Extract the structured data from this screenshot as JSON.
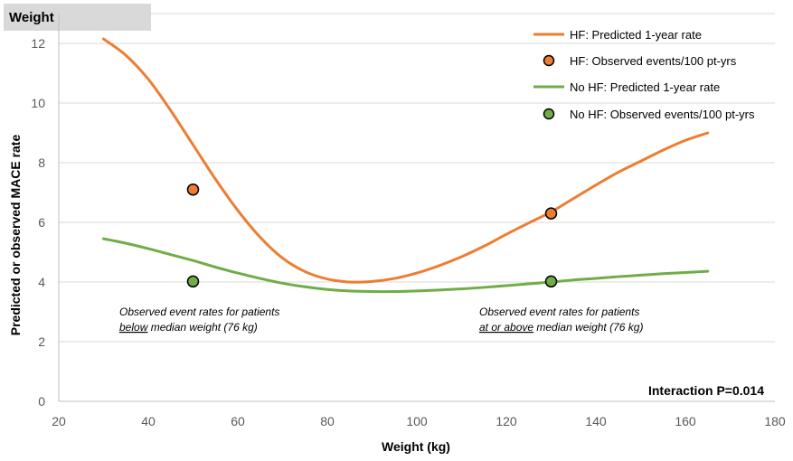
{
  "chart_data": {
    "type": "line",
    "title": "Weight",
    "xlabel": "Weight (kg)",
    "ylabel": "Predicted or observed MACE rate",
    "xlim": [
      20,
      180
    ],
    "ylim": [
      0,
      13
    ],
    "xticks": [
      20,
      40,
      60,
      80,
      100,
      120,
      140,
      160,
      180
    ],
    "yticks": [
      0,
      2,
      4,
      6,
      8,
      10,
      12
    ],
    "grid": "horizontal",
    "legend_position": "top-right",
    "series": [
      {
        "name": "HF: Predicted 1-year rate",
        "kind": "line",
        "color": "#ED7D31",
        "x": [
          30,
          35,
          40,
          45,
          50,
          55,
          60,
          65,
          70,
          75,
          80,
          85,
          90,
          95,
          100,
          105,
          110,
          115,
          120,
          125,
          130,
          135,
          140,
          145,
          150,
          155,
          160,
          165
        ],
        "y": [
          12.15,
          11.6,
          10.8,
          9.75,
          8.6,
          7.45,
          6.4,
          5.5,
          4.8,
          4.35,
          4.1,
          4.0,
          4.02,
          4.12,
          4.3,
          4.55,
          4.85,
          5.2,
          5.6,
          5.98,
          6.35,
          6.8,
          7.25,
          7.68,
          8.05,
          8.42,
          8.75,
          9.0
        ]
      },
      {
        "name": "HF: Observed events/100 pt-yrs",
        "kind": "point",
        "color": "#ED7D31",
        "x": [
          50,
          130
        ],
        "y": [
          7.1,
          6.3
        ]
      },
      {
        "name": "No HF: Predicted 1-year rate",
        "kind": "line",
        "color": "#70AD47",
        "x": [
          30,
          35,
          40,
          45,
          50,
          55,
          60,
          65,
          70,
          75,
          80,
          85,
          90,
          95,
          100,
          105,
          110,
          115,
          120,
          125,
          130,
          135,
          140,
          145,
          150,
          155,
          160,
          165
        ],
        "y": [
          5.45,
          5.3,
          5.12,
          4.92,
          4.72,
          4.5,
          4.3,
          4.12,
          3.96,
          3.84,
          3.75,
          3.7,
          3.68,
          3.68,
          3.7,
          3.73,
          3.77,
          3.82,
          3.88,
          3.94,
          4.0,
          4.07,
          4.12,
          4.18,
          4.23,
          4.28,
          4.32,
          4.36
        ]
      },
      {
        "name": "No HF: Observed events/100 pt-yrs",
        "kind": "point",
        "color": "#70AD47",
        "x": [
          50,
          130
        ],
        "y": [
          4.02,
          4.02
        ]
      }
    ],
    "annotations": {
      "left": {
        "line1": "Observed event rates for patients",
        "line2_underlined": "below",
        "line2_rest": " median weight (76 kg)"
      },
      "right": {
        "line1": "Observed event rates for patients",
        "line2_underlined": "at or above",
        "line2_rest": " median weight (76 kg)"
      },
      "interaction": "Interaction P=0.014"
    }
  }
}
